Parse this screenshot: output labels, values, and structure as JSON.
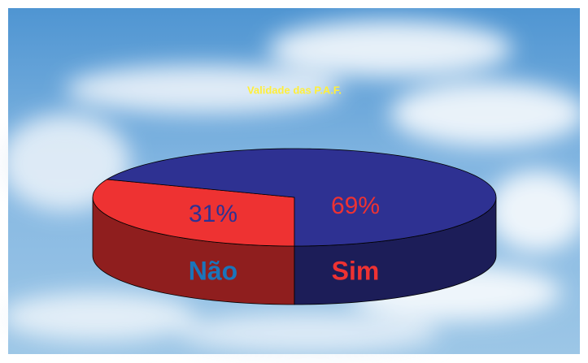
{
  "chart_data": {
    "type": "pie3d",
    "title": "Validade das P.A.F.",
    "categories": [
      "Não",
      "Sim"
    ],
    "values": [
      31,
      69
    ],
    "value_labels": [
      "31%",
      "69%"
    ],
    "colors": [
      "#ee3232",
      "#2e3192"
    ]
  }
}
